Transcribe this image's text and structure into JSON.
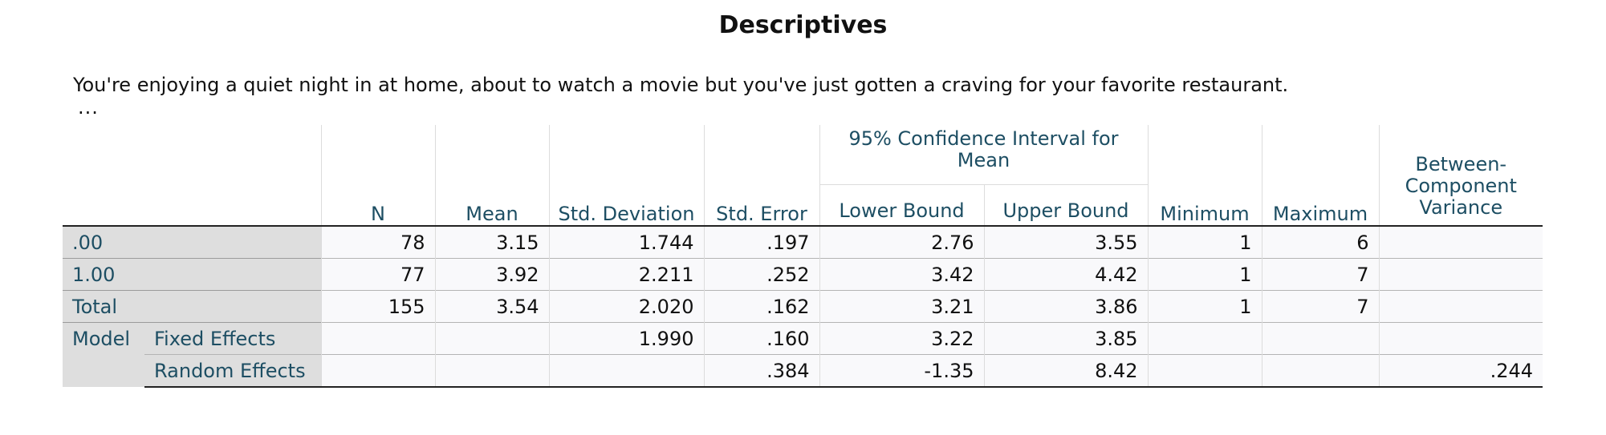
{
  "title": "Descriptives",
  "subtitle": "You're enjoying a quiet night in at home, about to watch a movie but you've just gotten a craving for your favorite restaurant.",
  "ellipsis": "...",
  "headers": {
    "n": "N",
    "mean": "Mean",
    "std_dev": "Std. Deviation",
    "std_err": "Std. Error",
    "ci_group": "95% Confidence Interval for Mean",
    "lower": "Lower Bound",
    "upper": "Upper Bound",
    "min": "Minimum",
    "max": "Maximum",
    "bcv": "Between-Component Variance"
  },
  "rows": [
    {
      "label": ".00",
      "n": "78",
      "mean": "3.15",
      "std_dev": "1.744",
      "std_err": ".197",
      "lower": "2.76",
      "upper": "3.55",
      "min": "1",
      "max": "6",
      "bcv": ""
    },
    {
      "label": "1.00",
      "n": "77",
      "mean": "3.92",
      "std_dev": "2.211",
      "std_err": ".252",
      "lower": "3.42",
      "upper": "4.42",
      "min": "1",
      "max": "7",
      "bcv": ""
    },
    {
      "label": "Total",
      "n": "155",
      "mean": "3.54",
      "std_dev": "2.020",
      "std_err": ".162",
      "lower": "3.21",
      "upper": "3.86",
      "min": "1",
      "max": "7",
      "bcv": ""
    }
  ],
  "model": {
    "label": "Model",
    "fixed": {
      "label": "Fixed Effects",
      "std_dev": "1.990",
      "std_err": ".160",
      "lower": "3.22",
      "upper": "3.85"
    },
    "random": {
      "label": "Random Effects",
      "std_err": ".384",
      "lower": "-1.35",
      "upper": "8.42",
      "bcv": ".244"
    }
  }
}
